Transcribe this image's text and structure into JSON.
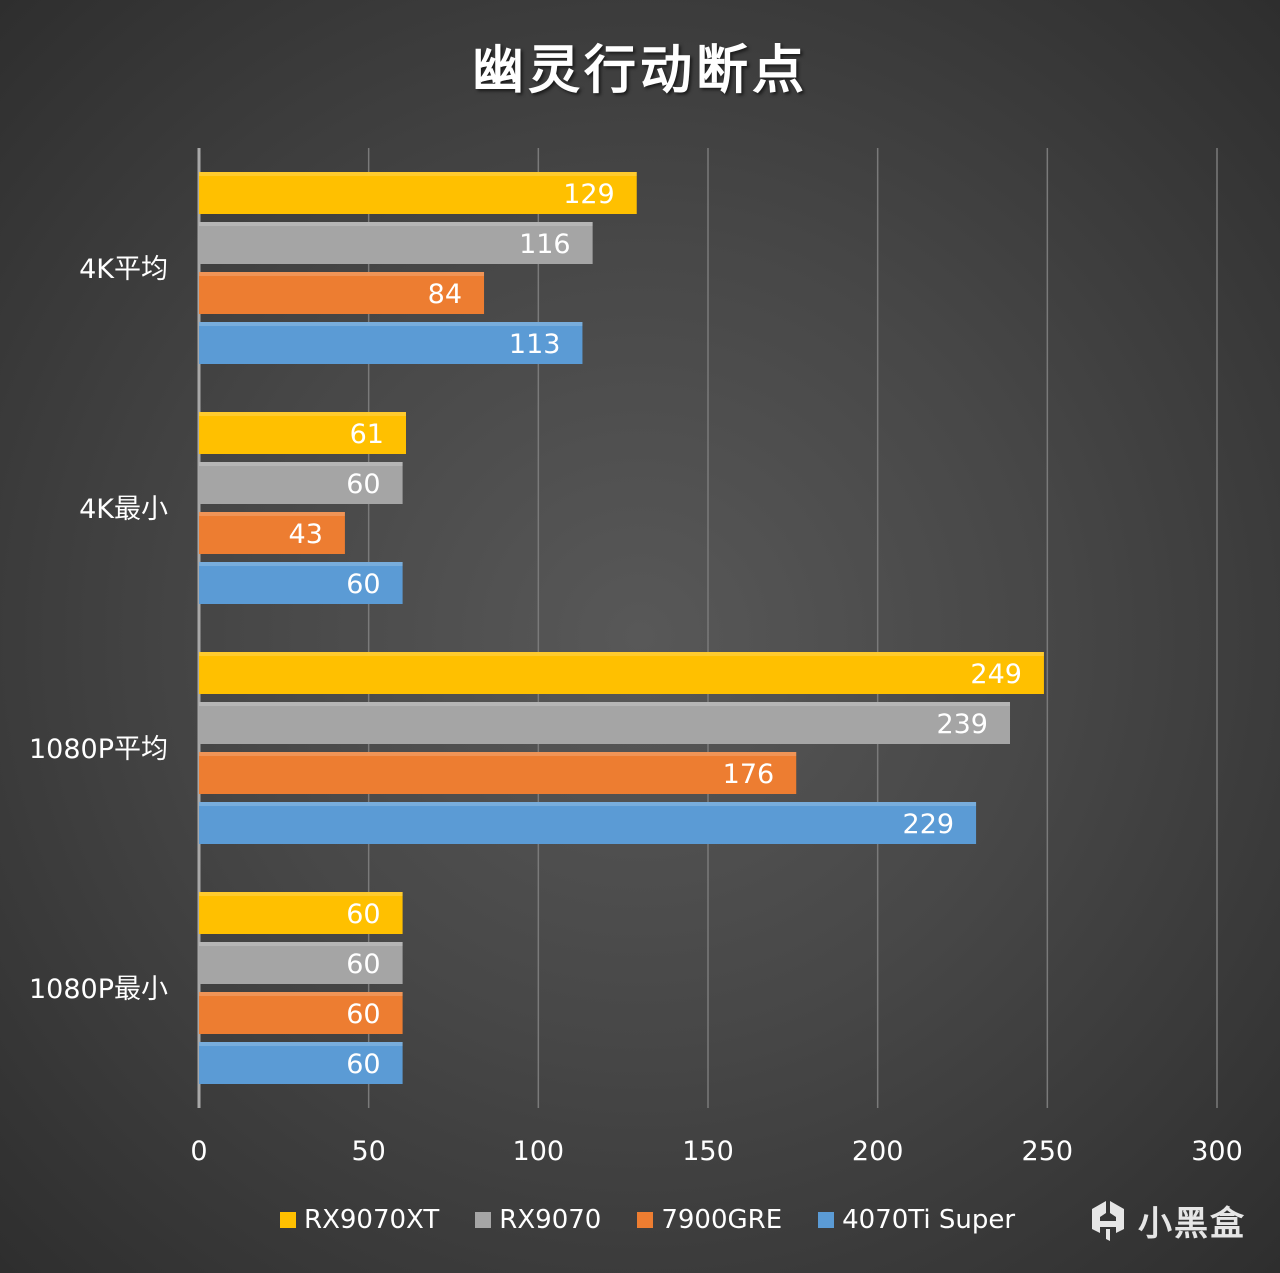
{
  "chart_data": {
    "type": "bar",
    "orientation": "horizontal",
    "title": "幽灵行动断点",
    "categories": [
      "4K平均",
      "4K最小",
      "1080P平均",
      "1080P最小"
    ],
    "series": [
      {
        "name": "RX9070XT",
        "color": "#ffc000",
        "values": [
          129,
          61,
          249,
          60
        ]
      },
      {
        "name": "RX9070",
        "color": "#a5a5a5",
        "values": [
          116,
          60,
          239,
          60
        ]
      },
      {
        "name": "7900GRE",
        "color": "#ed7d31",
        "values": [
          84,
          43,
          176,
          60
        ]
      },
      {
        "name": "4070Ti Super",
        "color": "#5b9bd5",
        "values": [
          113,
          60,
          229,
          60
        ]
      }
    ],
    "xlim": [
      0,
      300
    ],
    "xticks": [
      0,
      50,
      100,
      150,
      200,
      250,
      300
    ],
    "grid": true,
    "legend_position": "bottom",
    "data_labels": true
  },
  "watermark": {
    "text": "小黑盒",
    "icon": "xiaoheihe-logo-icon"
  }
}
